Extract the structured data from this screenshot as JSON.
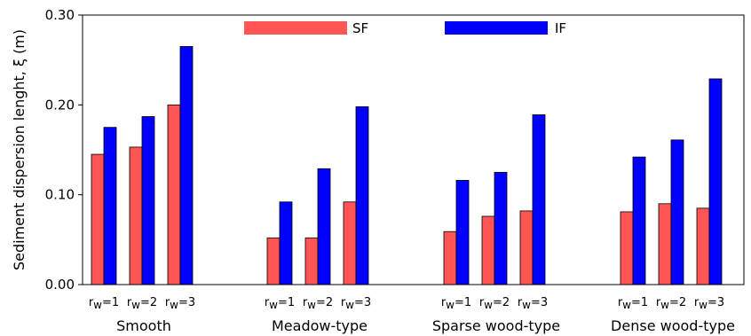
{
  "chart_data": {
    "type": "bar",
    "title": "",
    "ylabel": "Sediment dispersion lenght, ξ (m)",
    "xlabel": "",
    "ylim": [
      0,
      0.3
    ],
    "yticks": [
      0.0,
      0.1,
      0.2,
      0.3
    ],
    "ytick_labels": [
      "0.00",
      "0.10",
      "0.20",
      "0.30"
    ],
    "grid": false,
    "legend_position": "top-center",
    "groups": [
      "Smooth",
      "Meadow-type",
      "Sparse wood-type",
      "Dense wood-type"
    ],
    "subcategory_prefix": "r",
    "subcategory_subscript": "w",
    "subcategory_suffixes": [
      "=1",
      "=2",
      "=3"
    ],
    "series": [
      {
        "name": "SF",
        "color": "#ff5555",
        "values": [
          [
            0.145,
            0.153,
            0.2
          ],
          [
            0.052,
            0.052,
            0.092
          ],
          [
            0.059,
            0.076,
            0.082
          ],
          [
            0.081,
            0.09,
            0.085
          ]
        ]
      },
      {
        "name": "IF",
        "color": "#0000ff",
        "values": [
          [
            0.175,
            0.187,
            0.265
          ],
          [
            0.092,
            0.129,
            0.198
          ],
          [
            0.116,
            0.125,
            0.189
          ],
          [
            0.142,
            0.161,
            0.229
          ]
        ]
      }
    ]
  }
}
